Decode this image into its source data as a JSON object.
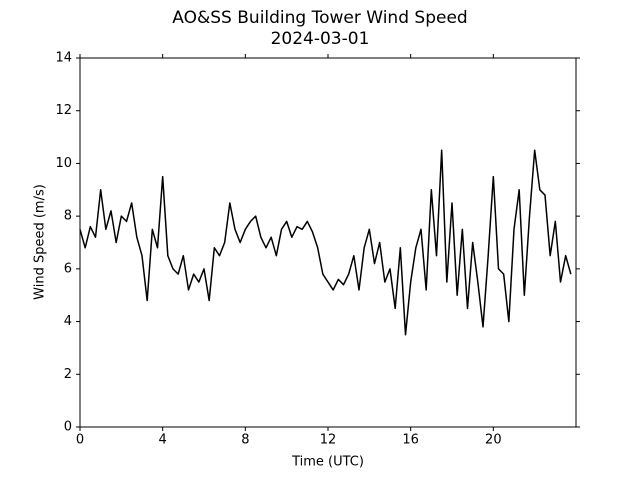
{
  "chart_data": {
    "type": "line",
    "title": "AO&SS Building Tower Wind Speed",
    "subtitle": "2024-03-01",
    "x_label": "Time (UTC)",
    "y_label": "Wind Speed (m/s)",
    "color": "#000000",
    "x": [
      0,
      0.25,
      0.5,
      0.75,
      1,
      1.25,
      1.5,
      1.75,
      2,
      2.25,
      2.5,
      2.75,
      3,
      3.25,
      3.5,
      3.75,
      4,
      4.25,
      4.5,
      4.75,
      5,
      5.25,
      5.5,
      5.75,
      6,
      6.25,
      6.5,
      6.75,
      7,
      7.25,
      7.5,
      7.75,
      8,
      8.25,
      8.5,
      8.75,
      9,
      9.25,
      9.5,
      9.75,
      10,
      10.25,
      10.5,
      10.75,
      11,
      11.25,
      11.5,
      11.75,
      12,
      12.25,
      12.5,
      12.75,
      13,
      13.25,
      13.5,
      13.75,
      14,
      14.25,
      14.5,
      14.75,
      15,
      15.25,
      15.5,
      15.75,
      16,
      16.25,
      16.5,
      16.75,
      17,
      17.25,
      17.5,
      17.75,
      18,
      18.25,
      18.5,
      18.75,
      19,
      19.25,
      19.5,
      19.75,
      20,
      20.25,
      20.5,
      20.75,
      21,
      21.25,
      21.5,
      21.75,
      22,
      22.25,
      22.5,
      22.75,
      23,
      23.25,
      23.5,
      23.75
    ],
    "values": [
      7.5,
      6.8,
      7.6,
      7.2,
      9.0,
      7.5,
      8.2,
      7.0,
      8.0,
      7.8,
      8.5,
      7.2,
      6.5,
      4.8,
      7.5,
      6.8,
      9.5,
      6.5,
      6.0,
      5.8,
      6.5,
      5.2,
      5.8,
      5.5,
      6.0,
      4.8,
      6.8,
      6.5,
      7.0,
      8.5,
      7.5,
      7.0,
      7.5,
      7.8,
      8.0,
      7.2,
      6.8,
      7.2,
      6.5,
      7.5,
      7.8,
      7.2,
      7.6,
      7.5,
      7.8,
      7.4,
      6.8,
      5.8,
      5.5,
      5.2,
      5.6,
      5.4,
      5.8,
      6.5,
      5.2,
      6.8,
      7.5,
      6.2,
      7.0,
      5.5,
      6.0,
      4.5,
      6.8,
      3.5,
      5.5,
      6.8,
      7.5,
      5.2,
      9.0,
      6.5,
      10.5,
      5.5,
      8.5,
      5.0,
      7.5,
      4.5,
      7.0,
      5.5,
      3.8,
      6.5,
      9.5,
      6.0,
      5.8,
      4.0,
      7.5,
      9.0,
      5.0,
      8.0,
      10.5,
      9.0,
      8.8,
      6.5,
      7.8,
      5.5,
      6.5,
      5.8
    ],
    "xlim": [
      0,
      24
    ],
    "xticks": [
      0,
      4,
      8,
      12,
      16,
      20
    ],
    "ylim": [
      0,
      14
    ],
    "yticks": [
      0,
      2,
      4,
      6,
      8,
      10,
      12,
      14
    ]
  }
}
